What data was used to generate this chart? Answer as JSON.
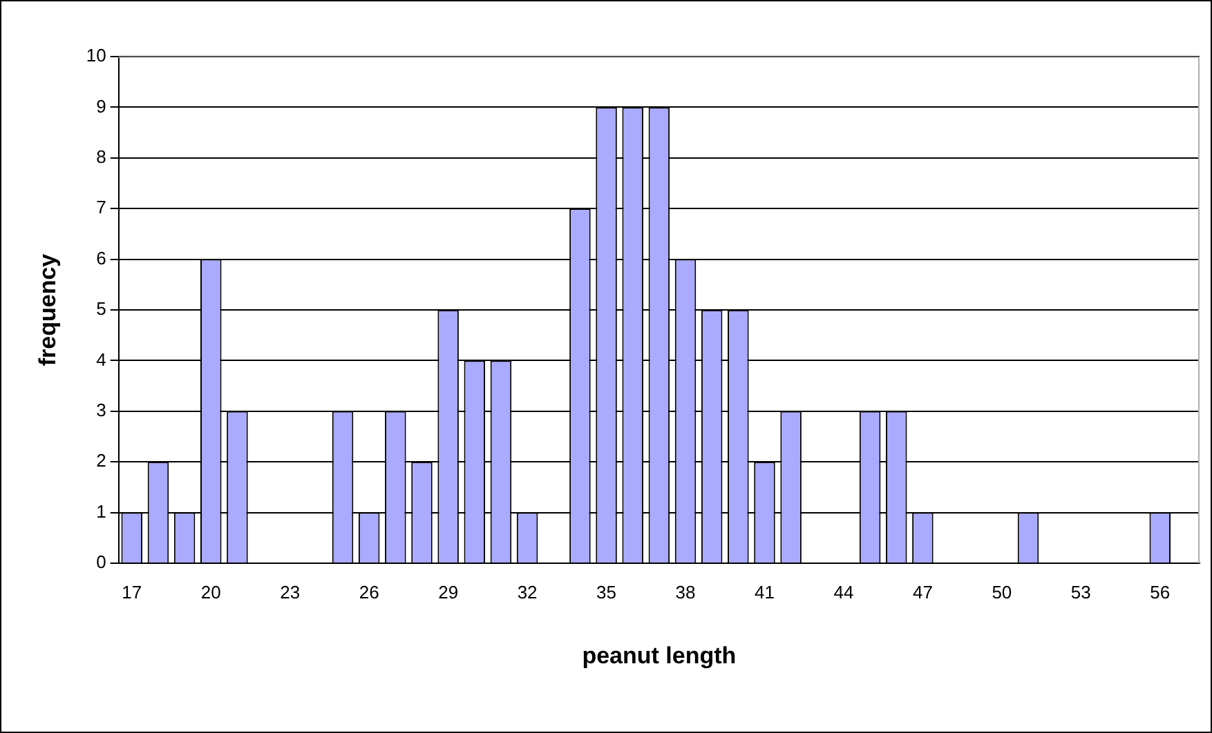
{
  "chart_data": {
    "type": "bar",
    "xlabel": "peanut length",
    "ylabel": "frequency",
    "categories": [
      "17",
      null,
      null,
      "20",
      null,
      null,
      "23",
      null,
      null,
      "26",
      null,
      null,
      "29",
      null,
      null,
      "32",
      null,
      null,
      "35",
      null,
      null,
      "38",
      null,
      null,
      "41",
      null,
      null,
      "44",
      null,
      null,
      "47",
      null,
      null,
      "50",
      null,
      null,
      "53",
      null,
      null,
      "56",
      null
    ],
    "values": [
      1,
      2,
      1,
      6,
      3,
      0,
      0,
      0,
      3,
      1,
      3,
      2,
      5,
      4,
      4,
      1,
      0,
      7,
      9,
      9,
      9,
      6,
      5,
      5,
      2,
      3,
      0,
      0,
      3,
      3,
      1,
      0,
      0,
      0,
      1,
      0,
      0,
      0,
      0,
      1,
      0
    ],
    "color": "#aaaaff",
    "ylim": [
      0,
      10
    ],
    "yticks": [
      0,
      1,
      2,
      3,
      4,
      5,
      6,
      7,
      8,
      9,
      10
    ],
    "grid": "y",
    "legend": false
  }
}
